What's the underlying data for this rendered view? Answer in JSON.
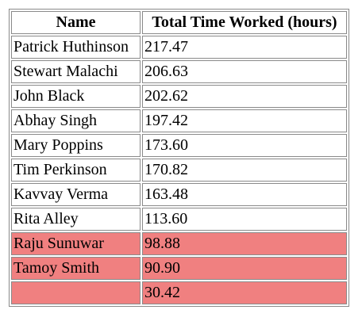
{
  "table": {
    "headers": [
      "Name",
      "Total Time Worked (hours)"
    ],
    "highlight_color": "#f08080",
    "rows": [
      {
        "name": "Patrick Huthinson",
        "time": "217.47",
        "highlight": false
      },
      {
        "name": "Stewart Malachi",
        "time": "206.63",
        "highlight": false
      },
      {
        "name": "John Black",
        "time": "202.62",
        "highlight": false
      },
      {
        "name": "Abhay Singh",
        "time": "197.42",
        "highlight": false
      },
      {
        "name": "Mary Poppins",
        "time": "173.60",
        "highlight": false
      },
      {
        "name": "Tim Perkinson",
        "time": "170.82",
        "highlight": false
      },
      {
        "name": "Kavvay Verma",
        "time": "163.48",
        "highlight": false
      },
      {
        "name": "Rita Alley",
        "time": "113.60",
        "highlight": false
      },
      {
        "name": "Raju Sunuwar",
        "time": "98.88",
        "highlight": true
      },
      {
        "name": "Tamoy Smith",
        "time": "90.90",
        "highlight": true
      },
      {
        "name": "",
        "time": "30.42",
        "highlight": true
      }
    ]
  }
}
